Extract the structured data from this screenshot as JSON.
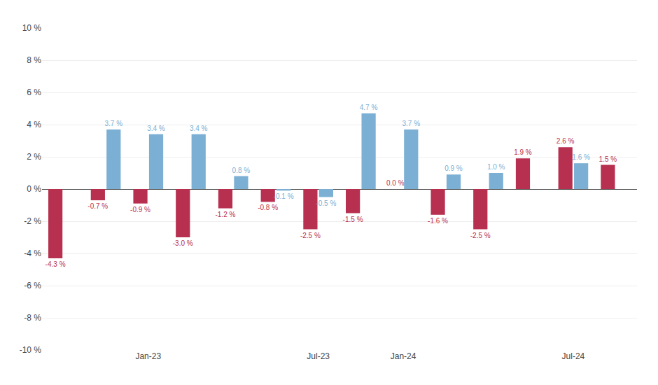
{
  "chart_data": {
    "type": "bar",
    "categories": [
      null,
      null,
      "Jan-23",
      null,
      null,
      null,
      "Jul-23",
      null,
      "Jan-24",
      null,
      null,
      null,
      "Jul-24",
      null
    ],
    "series": [
      {
        "color": "#b83050",
        "values": [
          -4.3,
          -0.7,
          -0.9,
          -3.0,
          -1.2,
          -0.8,
          -2.5,
          -1.5,
          0.0,
          -1.6,
          -2.5,
          1.9,
          2.6,
          1.5
        ],
        "value_labels": [
          "-4.3 %",
          "-0.7 %",
          "-0.9 %",
          "-3.0 %",
          "-1.2 %",
          "-0.8 %",
          "-2.5 %",
          "-1.5 %",
          "0.0 %",
          "-1.6 %",
          "-2.5 %",
          "1.9 %",
          "2.6 %",
          "1.5 %"
        ]
      },
      {
        "color": "#7bafd4",
        "values": [
          null,
          3.7,
          3.4,
          3.4,
          0.8,
          -0.1,
          -0.5,
          4.7,
          3.7,
          0.9,
          1.0,
          null,
          1.6,
          null
        ],
        "value_labels": [
          null,
          "3.7 %",
          "3.4 %",
          "3.4 %",
          "0.8 %",
          "-0.1 %",
          "-0.5 %",
          "4.7 %",
          "3.7 %",
          "0.9 %",
          "1.0 %",
          null,
          "1.6 %",
          null
        ]
      }
    ],
    "ylim": [
      -10,
      10
    ],
    "yticks": [
      {
        "value": -10,
        "label": "-10 %"
      },
      {
        "value": -8,
        "label": "-8 %"
      },
      {
        "value": -6,
        "label": "-6 %"
      },
      {
        "value": -4,
        "label": "-4 %"
      },
      {
        "value": -2,
        "label": "-2 %"
      },
      {
        "value": 0,
        "label": "0 %"
      },
      {
        "value": 2,
        "label": "2 %"
      },
      {
        "value": 4,
        "label": "4 %"
      },
      {
        "value": 6,
        "label": "6 %"
      },
      {
        "value": 8,
        "label": "8 %"
      },
      {
        "value": 10,
        "label": "10 %"
      }
    ],
    "grid": true,
    "data_labels": true
  }
}
